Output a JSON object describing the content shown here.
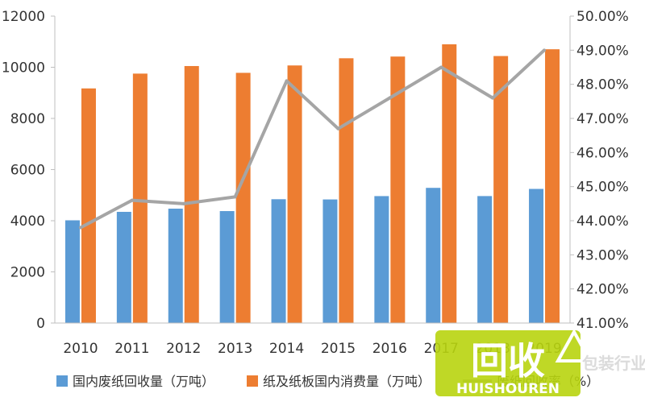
{
  "chart_data": {
    "type": "bar",
    "categories": [
      "2010",
      "2011",
      "2012",
      "2013",
      "2014",
      "2015",
      "2016",
      "2017",
      "2018",
      "2019"
    ],
    "series": [
      {
        "name": "国内废纸回收量（万吨）",
        "kind": "bar",
        "axis": "left",
        "color": "#5b9bd5",
        "values": [
          4016,
          4347,
          4472,
          4377,
          4841,
          4832,
          4963,
          5285,
          4964,
          5244
        ]
      },
      {
        "name": "纸及纸板国内消费量（万吨）",
        "kind": "bar",
        "axis": "right-scaled-left",
        "color": "#ed7d31",
        "values": [
          9173,
          9752,
          10048,
          9782,
          10071,
          10352,
          10419,
          10897,
          10439,
          10704
        ]
      },
      {
        "name": "废纸回收率（%）",
        "kind": "line",
        "axis": "right",
        "color": "#a5a5a5",
        "values": [
          43.8,
          44.6,
          44.5,
          44.7,
          48.1,
          46.7,
          47.6,
          48.5,
          47.6,
          49.0
        ]
      }
    ],
    "left_axis": {
      "min": 0,
      "max": 12000,
      "ticks": [
        "0",
        "2000",
        "4000",
        "6000",
        "8000",
        "10000",
        "12000"
      ]
    },
    "right_axis": {
      "min": 41,
      "max": 50,
      "ticks": [
        "41.00%",
        "42.00%",
        "43.00%",
        "44.00%",
        "45.00%",
        "46.00%",
        "47.00%",
        "48.00%",
        "49.00%",
        "50.00%"
      ]
    },
    "grid": false,
    "legend_position": "bottom"
  },
  "watermark": {
    "main": "回收",
    "sub": "HUISHOUREN",
    "extra": "包装行业"
  }
}
